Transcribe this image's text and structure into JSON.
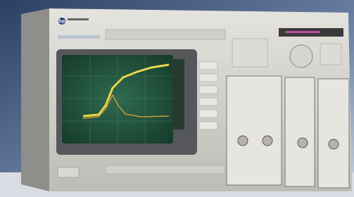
{
  "logo": "hp"
}
